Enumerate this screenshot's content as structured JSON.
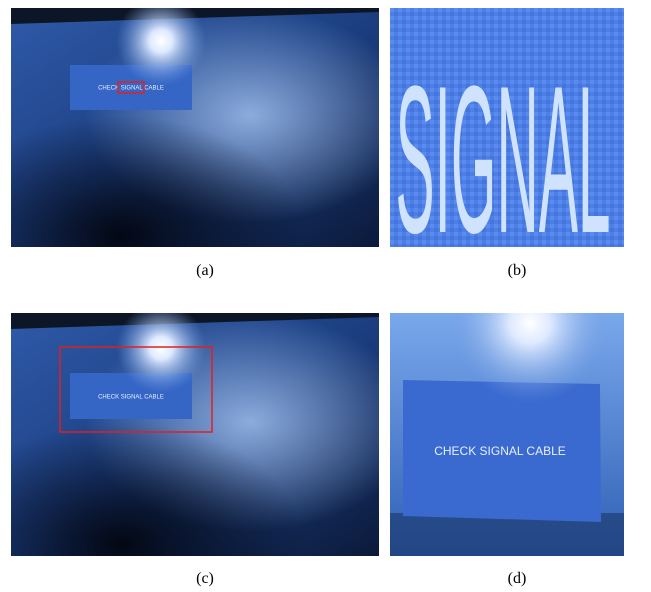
{
  "panels": [
    {
      "screen_text": "CHECK SIGNAL CABLE",
      "caption": "(a)"
    },
    {
      "screen_text": "SIGNAL",
      "caption": "(b)"
    },
    {
      "screen_text": "CHECK SIGNAL CABLE",
      "caption": "(c)"
    },
    {
      "screen_text": "CHECK SIGNAL CABLE",
      "caption": "(d)"
    }
  ]
}
